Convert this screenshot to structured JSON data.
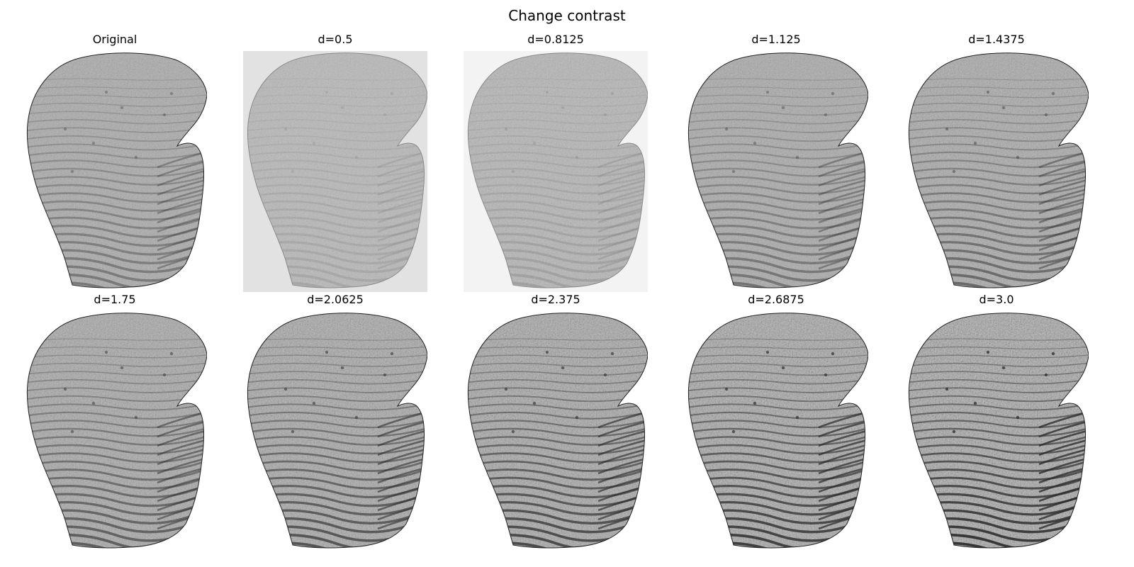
{
  "figure": {
    "title": "Change contrast"
  },
  "panels": [
    {
      "label": "Original",
      "contrast": 1.0,
      "background": "#ffffff"
    },
    {
      "label": "d=0.5",
      "contrast": 0.5,
      "background": "#e2e2e2"
    },
    {
      "label": "d=0.8125",
      "contrast": 0.8125,
      "background": "#f3f3f3"
    },
    {
      "label": "d=1.125",
      "contrast": 1.125,
      "background": "#ffffff"
    },
    {
      "label": "d=1.4375",
      "contrast": 1.4375,
      "background": "#ffffff"
    },
    {
      "label": "d=1.75",
      "contrast": 1.75,
      "background": "#ffffff"
    },
    {
      "label": "d=2.0625",
      "contrast": 2.0625,
      "background": "#ffffff"
    },
    {
      "label": "d=2.375",
      "contrast": 2.375,
      "background": "#ffffff"
    },
    {
      "label": "d=2.6875",
      "contrast": 2.6875,
      "background": "#ffffff"
    },
    {
      "label": "d=3.0",
      "contrast": 3.0,
      "background": "#ffffff"
    }
  ]
}
